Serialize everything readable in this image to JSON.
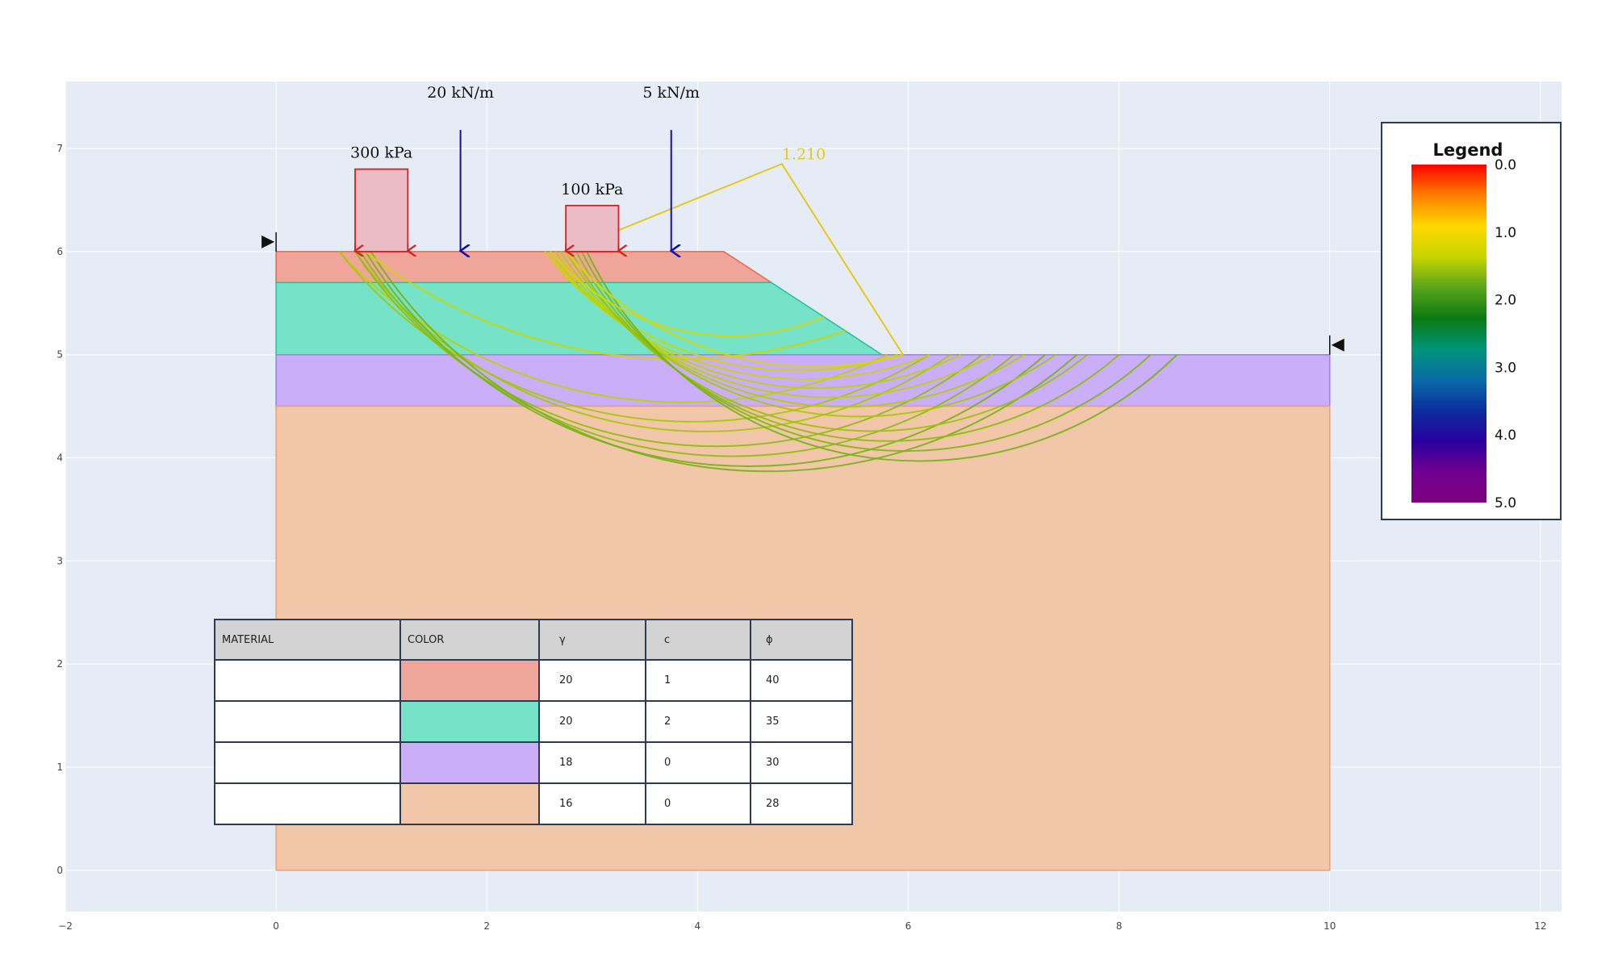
{
  "chart_data": {
    "type": "slope-stability",
    "x_axis": {
      "range": [
        -2.0,
        12.2
      ],
      "ticks": [
        -2,
        0,
        2,
        4,
        6,
        8,
        10,
        12
      ],
      "tick_labels": [
        "−2",
        "0",
        "2",
        "4",
        "6",
        "8",
        "10",
        "12"
      ]
    },
    "y_axis": {
      "range": [
        -0.4,
        7.65
      ],
      "ticks": [
        0,
        1,
        2,
        3,
        4,
        5,
        6,
        7
      ],
      "tick_labels": [
        "0",
        "1",
        "2",
        "3",
        "4",
        "5",
        "6",
        "7"
      ]
    },
    "grid": true,
    "layers": [
      {
        "color": "#f0a59b",
        "stroke": "#e8674d",
        "points": [
          [
            0,
            6.0
          ],
          [
            4.25,
            6.0
          ],
          [
            4.7,
            5.7
          ],
          [
            0,
            5.7
          ]
        ]
      },
      {
        "color": "#76e2c8",
        "stroke": "#23c09c",
        "points": [
          [
            0,
            5.7
          ],
          [
            4.7,
            5.7
          ],
          [
            5.75,
            5.0
          ],
          [
            0,
            5.0
          ]
        ]
      },
      {
        "color": "#cbaef8",
        "stroke": "#a07cf0",
        "points": [
          [
            0,
            5.0
          ],
          [
            10.0,
            5.0
          ],
          [
            10.0,
            4.5
          ],
          [
            0,
            4.5
          ]
        ]
      },
      {
        "color": "#f2c6a8",
        "stroke": "#f0a070",
        "points": [
          [
            0,
            4.5
          ],
          [
            10.0,
            4.5
          ],
          [
            10.0,
            0.0
          ],
          [
            0,
            0.0
          ]
        ]
      }
    ],
    "distributed_loads": [
      {
        "label": "300 kPa",
        "x1": 0.75,
        "x2": 1.25,
        "magnitude": 300
      },
      {
        "label": "100 kPa",
        "x1": 2.75,
        "x2": 3.25,
        "magnitude": 100
      }
    ],
    "line_loads": [
      {
        "label": "20 kN/m",
        "x": 1.75,
        "magnitude": 20
      },
      {
        "label": "5 kN/m",
        "x": 3.75,
        "magnitude": 5
      }
    ],
    "search_limits": [
      {
        "x": 0,
        "y": 6.0,
        "side": "left"
      },
      {
        "x": 10.0,
        "y": 5.0,
        "side": "right"
      }
    ],
    "failure_surfaces": [
      {
        "x_entry": 0.6,
        "x_exit": 5.8,
        "depth": 0.9,
        "fos": 1.4
      },
      {
        "x_entry": 0.6,
        "x_exit": 6.2,
        "depth": 1.1,
        "fos": 1.5
      },
      {
        "x_entry": 0.75,
        "x_exit": 6.4,
        "depth": 1.2,
        "fos": 1.5
      },
      {
        "x_entry": 0.75,
        "x_exit": 6.7,
        "depth": 1.35,
        "fos": 1.6
      },
      {
        "x_entry": 0.8,
        "x_exit": 7.0,
        "depth": 1.45,
        "fos": 1.6
      },
      {
        "x_entry": 0.85,
        "x_exit": 7.3,
        "depth": 1.55,
        "fos": 1.7
      },
      {
        "x_entry": 0.9,
        "x_exit": 7.6,
        "depth": 1.6,
        "fos": 1.7
      },
      {
        "x_entry": 0.85,
        "x_exit": 5.4,
        "depth": 0.6,
        "fos": 1.3
      },
      {
        "x_entry": 2.55,
        "x_exit": 5.9,
        "depth": 0.55,
        "fos": 1.3
      },
      {
        "x_entry": 2.55,
        "x_exit": 6.2,
        "depth": 0.65,
        "fos": 1.35
      },
      {
        "x_entry": 2.6,
        "x_exit": 6.5,
        "depth": 0.75,
        "fos": 1.4
      },
      {
        "x_entry": 2.65,
        "x_exit": 6.8,
        "depth": 0.85,
        "fos": 1.4
      },
      {
        "x_entry": 2.7,
        "x_exit": 7.1,
        "depth": 0.95,
        "fos": 1.45
      },
      {
        "x_entry": 2.75,
        "x_exit": 7.4,
        "depth": 1.05,
        "fos": 1.5
      },
      {
        "x_entry": 2.8,
        "x_exit": 7.7,
        "depth": 1.2,
        "fos": 1.55
      },
      {
        "x_entry": 2.85,
        "x_exit": 8.0,
        "depth": 1.3,
        "fos": 1.6
      },
      {
        "x_entry": 2.9,
        "x_exit": 8.3,
        "depth": 1.4,
        "fos": 1.65
      },
      {
        "x_entry": 2.95,
        "x_exit": 8.55,
        "depth": 1.5,
        "fos": 1.7
      },
      {
        "x_entry": 2.6,
        "x_exit": 5.2,
        "depth": 0.45,
        "fos": 1.25
      },
      {
        "x_entry": 2.75,
        "x_exit": 5.95,
        "depth": 0.5,
        "fos": 1.21,
        "critical": true
      }
    ],
    "critical_fos": {
      "label": "1.210",
      "label_x": 4.8,
      "label_y": 6.85,
      "polyline": [
        [
          2.75,
          6.0
        ],
        [
          4.8,
          6.85
        ],
        [
          5.95,
          5.0
        ]
      ]
    },
    "legend": {
      "title": "Legend",
      "range": [
        0.0,
        5.0
      ],
      "tick_values": [
        0.0,
        1.0,
        2.0,
        3.0,
        4.0,
        5.0
      ],
      "tick_labels": [
        "0.0",
        "1.0",
        "2.0",
        "3.0",
        "4.0",
        "5.0"
      ],
      "colorscale": [
        "#ff0000",
        "#ff7f00",
        "#ffd800",
        "#c7d600",
        "#5aa51b",
        "#0a7a10",
        "#009478",
        "#0a6ca8",
        "#0b2e9e",
        "#2a00a0",
        "#700090",
        "#800080"
      ]
    },
    "materials_table": {
      "headers": [
        "MATERIAL",
        "COLOR",
        "γ",
        "c",
        "ϕ"
      ],
      "rows": [
        {
          "material": "",
          "color": "#f0a59b",
          "gamma": "20",
          "c": "1",
          "phi": "40"
        },
        {
          "material": "",
          "color": "#76e2c8",
          "gamma": "20",
          "c": "2",
          "phi": "35"
        },
        {
          "material": "",
          "color": "#cbaef8",
          "gamma": "18",
          "c": "0",
          "phi": "30"
        },
        {
          "material": "",
          "color": "#f2c6a8",
          "gamma": "16",
          "c": "0",
          "phi": "28"
        }
      ]
    }
  }
}
